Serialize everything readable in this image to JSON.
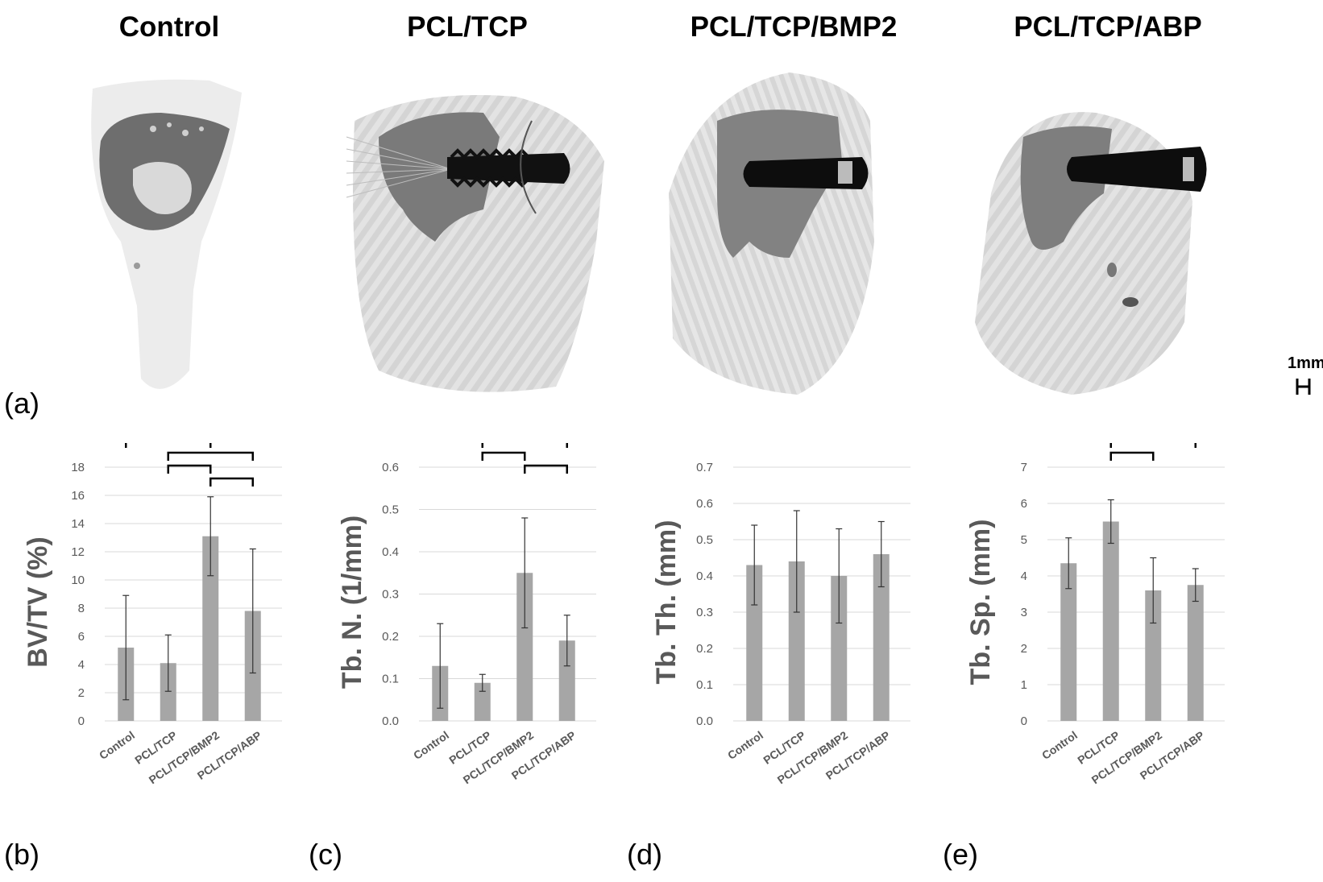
{
  "panel_a": {
    "label": "(a)",
    "titles": [
      "Control",
      "PCL/TCP",
      "PCL/TCP/BMP2",
      "PCL/TCP/ABP"
    ],
    "scale_bar": "1mm"
  },
  "panel_labels": {
    "b": "(b)",
    "c": "(c)",
    "d": "(d)",
    "e": "(e)"
  },
  "chart_data": [
    {
      "type": "bar",
      "panel": "b",
      "categories": [
        "Control",
        "PCL/TCP",
        "PCL/TCP/BMP2",
        "PCL/TCP/ABP"
      ],
      "values": [
        5.2,
        4.1,
        13.1,
        7.8
      ],
      "error": [
        3.7,
        2.0,
        2.8,
        4.4
      ],
      "ylabel": "BV/TV (%)",
      "ylim": [
        0,
        18
      ],
      "yticks": [
        0,
        2,
        4,
        6,
        8,
        10,
        12,
        14,
        16,
        18
      ],
      "significance": [
        [
          0,
          3
        ],
        [
          0,
          2
        ],
        [
          1,
          3
        ],
        [
          1,
          2
        ],
        [
          2,
          3
        ]
      ],
      "grid": true
    },
    {
      "type": "bar",
      "panel": "c",
      "categories": [
        "Control",
        "PCL/TCP",
        "PCL/TCP/BMP2",
        "PCL/TCP/ABP"
      ],
      "values": [
        0.13,
        0.09,
        0.35,
        0.19
      ],
      "error": [
        0.1,
        0.02,
        0.13,
        0.06
      ],
      "ylabel": "Tb. N. (1/mm)",
      "ylim": [
        0,
        0.6
      ],
      "yticks": [
        0,
        0.1,
        0.2,
        0.3,
        0.4,
        0.5,
        0.6
      ],
      "significance": [
        [
          0,
          2
        ],
        [
          1,
          3
        ],
        [
          1,
          2
        ],
        [
          2,
          3
        ]
      ],
      "grid": true
    },
    {
      "type": "bar",
      "panel": "d",
      "categories": [
        "Control",
        "PCL/TCP",
        "PCL/TCP/BMP2",
        "PCL/TCP/ABP"
      ],
      "values": [
        0.43,
        0.44,
        0.4,
        0.46
      ],
      "error": [
        0.11,
        0.14,
        0.13,
        0.09
      ],
      "ylabel": "Tb. Th. (mm)",
      "ylim": [
        0,
        0.7
      ],
      "yticks": [
        0,
        0.1,
        0.2,
        0.3,
        0.4,
        0.5,
        0.6,
        0.7
      ],
      "significance": [],
      "grid": true
    },
    {
      "type": "bar",
      "panel": "e",
      "categories": [
        "Control",
        "PCL/TCP",
        "PCL/TCP/BMP2",
        "PCL/TCP/ABP"
      ],
      "values": [
        4.35,
        5.5,
        3.6,
        3.75
      ],
      "error": [
        0.7,
        0.6,
        0.9,
        0.45
      ],
      "ylabel": "Tb. Sp. (mm)",
      "ylim": [
        0,
        7
      ],
      "yticks": [
        0,
        1,
        2,
        3,
        4,
        5,
        6,
        7
      ],
      "significance": [
        [
          0,
          1
        ],
        [
          1,
          3
        ],
        [
          1,
          2
        ]
      ],
      "grid": true
    }
  ],
  "colors": {
    "bar": "#a6a6a6",
    "grid": "#d9d9d9",
    "axis_text": "#595959",
    "bracket": "#000000"
  }
}
